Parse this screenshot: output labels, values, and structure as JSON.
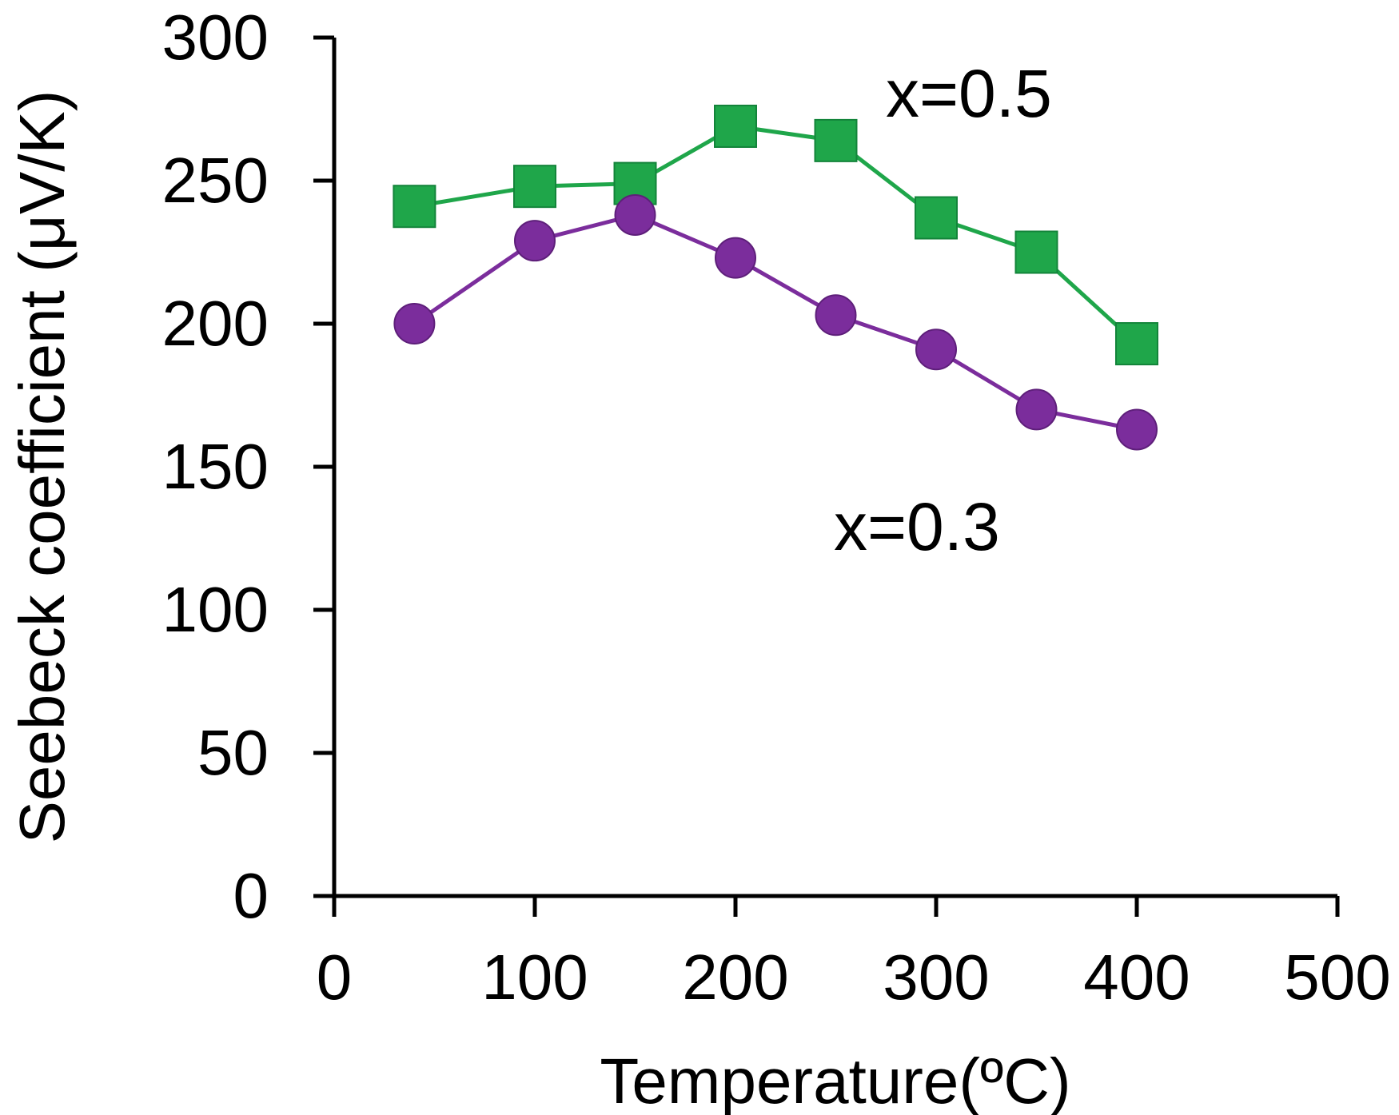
{
  "chart_data": {
    "type": "line",
    "title": "",
    "xlabel": "Temperature(ºC)",
    "ylabel": "Seebeck coefficient (μV/K)",
    "xlim": [
      0,
      500
    ],
    "ylim": [
      0,
      300
    ],
    "xticks": [
      0,
      100,
      200,
      300,
      400,
      500
    ],
    "yticks": [
      0,
      50,
      100,
      150,
      200,
      250,
      300
    ],
    "grid": false,
    "series": [
      {
        "name": "x=0.5",
        "marker": "square",
        "color": "#1fa64a",
        "x": [
          40,
          100,
          150,
          200,
          250,
          300,
          350,
          400
        ],
        "y": [
          241,
          248,
          249,
          269,
          264,
          237,
          225,
          193
        ]
      },
      {
        "name": "x=0.3",
        "marker": "circle",
        "color": "#7b2d9c",
        "x": [
          40,
          100,
          150,
          200,
          250,
          300,
          350,
          400
        ],
        "y": [
          200,
          229,
          238,
          223,
          203,
          191,
          170,
          163
        ]
      }
    ]
  }
}
